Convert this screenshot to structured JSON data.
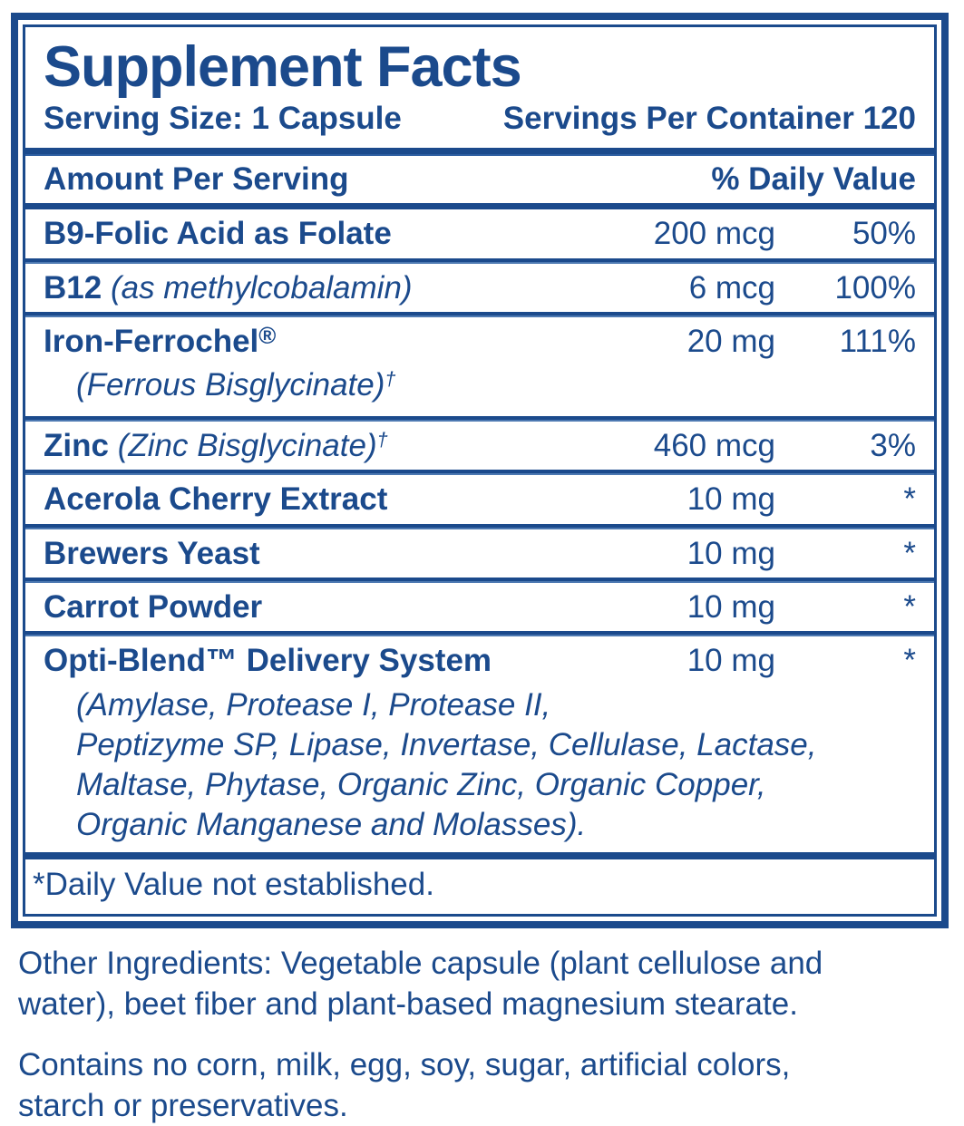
{
  "colors": {
    "navy": "#1b4a8c",
    "rule_shadow": "#4d79b2",
    "background": "#ffffff"
  },
  "label": {
    "title": "Supplement Facts",
    "serving_size": "Serving Size: 1 Capsule",
    "servings_per_container": "Servings Per Container 120",
    "header": {
      "amount": "Amount Per Serving",
      "daily_value": "% Daily Value"
    },
    "rows": [
      {
        "name": "B9-Folic Acid as Folate",
        "amount": "200 mcg",
        "dv": "50%"
      },
      {
        "name": "B12",
        "name_italic": "(as methylcobalamin)",
        "amount": "6 mcg",
        "dv": "100%"
      },
      {
        "name": "Iron-Ferrochel",
        "name_sup": "®",
        "sub": "(Ferrous Bisglycinate)",
        "sub_sup": "†",
        "amount": "20 mg",
        "dv": "111%"
      },
      {
        "name": "Zinc",
        "name_italic": "(Zinc Bisglycinate)",
        "name_italic_sup": "†",
        "amount": "460 mcg",
        "dv": "3%"
      },
      {
        "name": "Acerola Cherry Extract",
        "amount": "10 mg",
        "dv": "*"
      },
      {
        "name": "Brewers Yeast",
        "amount": "10 mg",
        "dv": "*"
      },
      {
        "name": "Carrot Powder",
        "amount": "10 mg",
        "dv": "*"
      },
      {
        "name": "Opti-Blend™ Delivery System",
        "amount": "10 mg",
        "dv": "*",
        "sub_lines": [
          "(Amylase, Protease I, Protease II,",
          "Peptizyme SP, Lipase, Invertase, Cellulase, Lactase,",
          "Maltase, Phytase, Organic Zinc, Organic Copper,",
          "Organic Manganese and Molasses)."
        ]
      }
    ],
    "footnote": "*Daily Value not established.",
    "other_ingredients_lines": [
      "Other Ingredients: Vegetable capsule (plant cellulose and",
      "water), beet fiber and plant-based magnesium stearate."
    ],
    "contains_lines": [
      "Contains no corn, milk, egg, soy, sugar, artificial colors,",
      "starch or preservatives."
    ]
  }
}
